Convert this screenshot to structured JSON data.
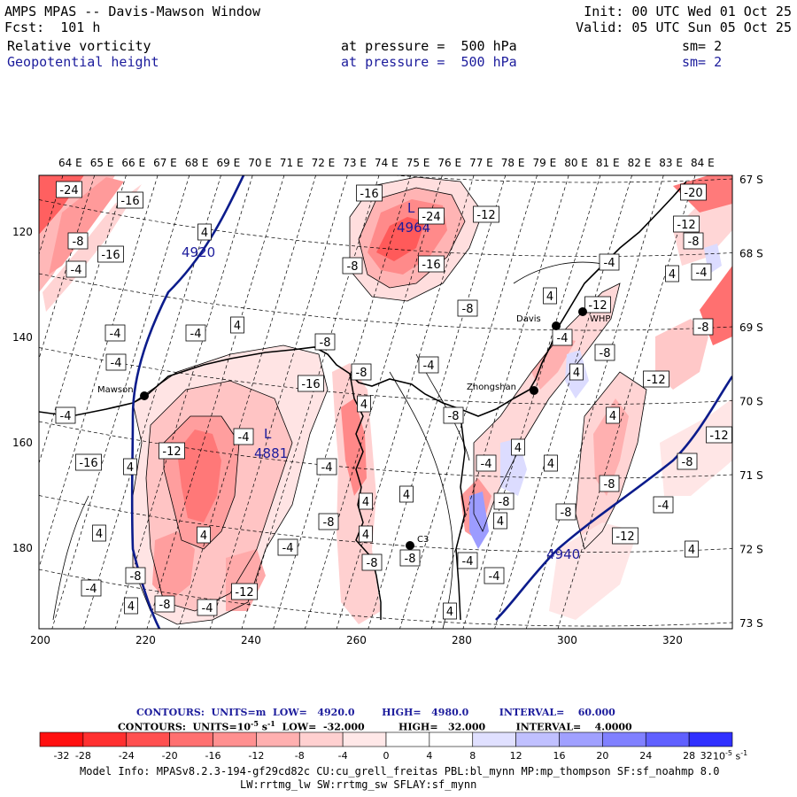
{
  "header": {
    "title": "AMPS MPAS -- Davis-Mawson Window",
    "forecast": "Fcst:  101 h",
    "init": "Init: 00 UTC Wed 01 Oct 25",
    "valid": "Valid: 05 UTC Sun 05 Oct 25",
    "field1": {
      "name": "Relative vorticity",
      "level": "at pressure =  500 hPa",
      "smooth": "sm= 2"
    },
    "field2": {
      "name": "Geopotential height",
      "level": "at pressure =  500 hPa",
      "smooth": "sm= 2"
    }
  },
  "map": {
    "top_longitudes": [
      "64 E",
      "65 E",
      "66 E",
      "67 E",
      "68 E",
      "69 E",
      "70 E",
      "71 E",
      "72 E",
      "73 E",
      "74 E",
      "75 E",
      "76 E",
      "77 E",
      "78 E",
      "79 E",
      "80 E",
      "81 E",
      "82 E",
      "83 E",
      "84 E"
    ],
    "right_latitudes": [
      "67 S",
      "68 S",
      "69 S",
      "70 S",
      "71 S",
      "72 S",
      "73 S"
    ],
    "left_grid": [
      "120",
      "140",
      "160",
      "180"
    ],
    "bottom_grid": [
      "200",
      "220",
      "240",
      "260",
      "280",
      "300",
      "320"
    ],
    "stations": [
      "Mawson",
      "Davis",
      "WHP",
      "Zhongshan",
      "C3"
    ],
    "height_labels": [
      "4920",
      "4964",
      "4881",
      "4940"
    ],
    "low_marks": [
      "L",
      "L"
    ],
    "vort_labels": [
      "-24",
      "-16",
      "-8",
      "-16",
      "-4",
      "4",
      "-16",
      "-24",
      "-12",
      "-8",
      "-16",
      "-20",
      "-12",
      "-8",
      "-4",
      "4",
      "-4",
      "4",
      "-12",
      "-8",
      "-4",
      "-8",
      "-4",
      "-4",
      "4",
      "-8",
      "-4",
      "-8",
      "-4",
      "-8",
      "-16",
      "4",
      "-4",
      "4",
      "-8",
      "-12",
      "4",
      "-12",
      "4",
      "-16",
      "-12",
      "-4",
      "4",
      "-4",
      "-4",
      "4",
      "-8",
      "-8",
      "4",
      "4",
      "-8",
      "-4",
      "-8",
      "-8",
      "4",
      "-4",
      "-8",
      "-4",
      "-12",
      "-8",
      "4",
      "4",
      "-12",
      "-8",
      "-4",
      "-4",
      "4",
      "-8",
      "-4",
      "4",
      "4",
      "4"
    ],
    "colors": {
      "neg_fill": "#f06060",
      "pos_fill": "#8a8aff",
      "height_line": "#0c1c8c"
    }
  },
  "contours_info": {
    "line1": "CONTOURS:  UNITS=m  LOW=   4920.0        HIGH=   4980.0         INTERVAL=    60.000",
    "line2": "CONTOURS:  UNITS=10",
    "line2_exp": "-5",
    "line2_s": " s",
    "line2_sexp": "-1",
    "line2_rest": "  LOW=  -32.000          HIGH=   32.000         INTERVAL=    4.0000"
  },
  "colorbar": {
    "ticks": [
      "-32",
      "-28",
      "-24",
      "-20",
      "-16",
      "-12",
      "-8",
      "-4",
      "0",
      "4",
      "8",
      "12",
      "16",
      "20",
      "24",
      "28",
      "32"
    ],
    "unit": "10",
    "unit_exp": "-5",
    "unit_s": " s",
    "unit_s_exp": "-1",
    "colors": [
      "#ff1010",
      "#ff3030",
      "#ff5050",
      "#ff7070",
      "#ff9090",
      "#ffb0b0",
      "#ffd0d0",
      "#ffe8e8",
      "#ffffff",
      "#ffffff",
      "#e0e0ff",
      "#c0c0ff",
      "#a0a0ff",
      "#8080ff",
      "#6060ff",
      "#3030ff",
      "#0c0cff"
    ]
  },
  "model_info": {
    "line1": "Model Info: MPASv8.2.3-194-gf29cd82c CU:cu_grell_freitas PBL:bl_mynn MP:mp_thompson SF:sf_noahmp 8.0",
    "line2": "LW:rrtmg_lw SW:rrtmg_sw SFLAY:sf_mynn"
  }
}
